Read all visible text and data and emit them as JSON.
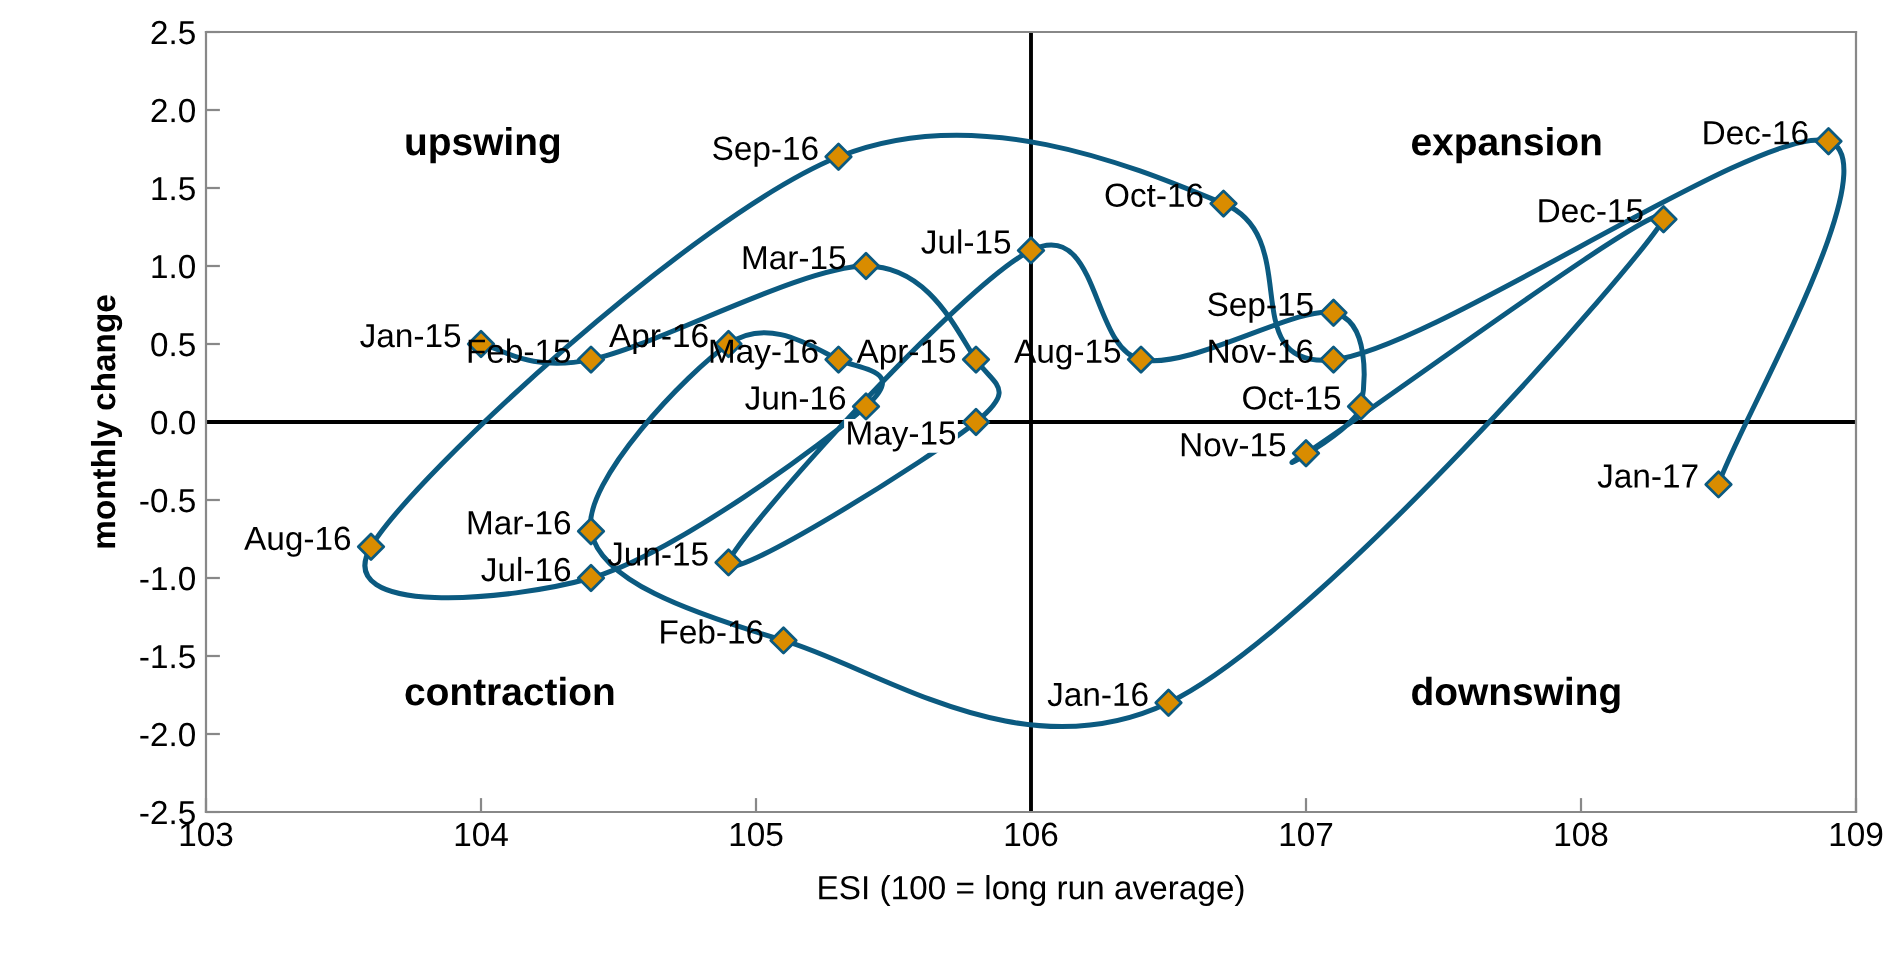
{
  "chart_data": {
    "type": "line",
    "marker": "diamond",
    "xlabel": "ESI (100 = long run average)",
    "ylabel": "monthly change",
    "series": [
      {
        "color": "#0b5a80",
        "colors": [
          "#d98c00",
          "#d98c00",
          "#d98c00",
          "#d98c00",
          "#d98c00",
          "#d98c00",
          "#d98c00",
          "#d98c00",
          "#d98c00",
          "#d98c00",
          "#d98c00",
          "#d98c00",
          "#d98c00",
          "#d98c00",
          "#d98c00",
          "#d98c00",
          "#d98c00",
          "#d98c00",
          "#d98c00",
          "#d98c00",
          "#d98c00",
          "#d98c00",
          "#d98c00",
          "#d98c00",
          "#d98c00"
        ],
        "x": [
          104.0,
          104.4,
          105.4,
          105.8,
          105.8,
          104.9,
          106.0,
          106.4,
          107.1,
          107.2,
          107.0,
          108.3,
          106.5,
          105.1,
          104.4,
          104.9,
          105.3,
          105.4,
          104.4,
          103.6,
          105.3,
          106.7,
          107.1,
          108.9,
          108.5
        ],
        "values": [
          0.5,
          0.4,
          1.0,
          0.4,
          0.0,
          -0.9,
          1.1,
          0.4,
          0.7,
          0.1,
          -0.2,
          1.3,
          -1.8,
          -1.4,
          -0.7,
          0.5,
          0.4,
          0.1,
          -1.0,
          -0.8,
          1.7,
          1.4,
          0.4,
          1.8,
          -0.4
        ],
        "value_labels": [
          "Jan-15",
          "Feb-15",
          "Mar-15",
          "Apr-15",
          "May-15",
          "Jun-15",
          "Jul-15",
          "Aug-15",
          "Sep-15",
          "Oct-15",
          "Nov-15",
          "Dec-15",
          "Jan-16",
          "Feb-16",
          "Mar-16",
          "Apr-16",
          "May-16",
          "Jun-16",
          "Jul-16",
          "Aug-16",
          "Sep-16",
          "Oct-16",
          "Nov-16",
          "Dec-16",
          "Jan-17"
        ]
      }
    ],
    "annotations": [
      "upswing",
      "expansion",
      "contraction",
      "downswing"
    ],
    "ref_lines": [
      {
        "axis": "x",
        "value": 106,
        "color": "#000000"
      },
      {
        "axis": "y",
        "value": 0,
        "color": "#000000"
      }
    ],
    "xlim": [
      103,
      109
    ],
    "xticks": [
      103,
      104,
      105,
      106,
      107,
      108,
      109
    ],
    "ylim": [
      -2.5,
      2.5
    ],
    "yticks": [
      -2.5,
      {
        "value": -2,
        "label": "-2.0"
      },
      -1.5,
      {
        "value": -1,
        "label": "-1.0"
      },
      -0.5,
      {
        "value": 0,
        "label": "0.0"
      },
      0.5,
      {
        "value": 1,
        "label": "1.0"
      },
      1.5,
      {
        "value": 2,
        "label": "2.0"
      },
      2.5
    ],
    "grid": false
  }
}
